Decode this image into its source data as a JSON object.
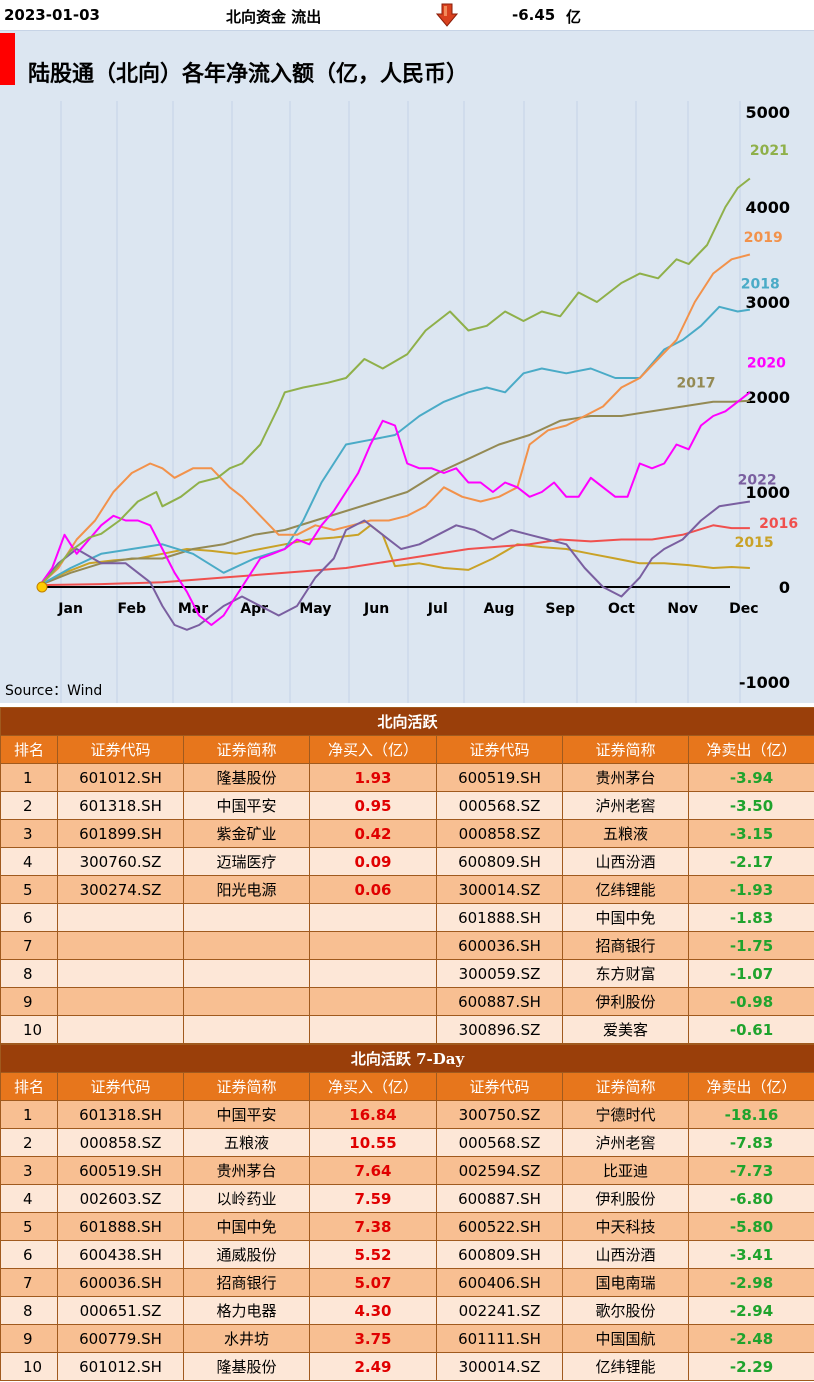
{
  "header": {
    "date": "2023-01-03",
    "label": "北向资金 流出",
    "value": "-6.45",
    "unit": "亿"
  },
  "colors": {
    "2021": "#8fb04a",
    "2019": "#f2924b",
    "2018": "#4aabc7",
    "2020": "#ff00ff",
    "2017": "#948a54",
    "2022": "#7a5fa0",
    "2016": "#f0504e",
    "2015": "#c9a227"
  },
  "chart_data": {
    "type": "line",
    "title": "陆股通（北向）各年净流入额（亿，人民币）",
    "source": "Source：Wind",
    "xlabel": "",
    "ylabel": "",
    "ylim": [
      -1000,
      5000
    ],
    "yticks": [
      5000,
      4000,
      3000,
      2000,
      1000,
      0,
      -1000
    ],
    "months": [
      "Jan",
      "Feb",
      "Mar",
      "Apr",
      "May",
      "Jun",
      "Jul",
      "Aug",
      "Sep",
      "Oct",
      "Nov",
      "Dec"
    ],
    "series": [
      {
        "name": "2021",
        "x": [
          0,
          0.2,
          0.5,
          0.8,
          1.0,
          1.3,
          1.6,
          1.9,
          2.0,
          2.3,
          2.6,
          2.9,
          3.1,
          3.3,
          3.6,
          3.9,
          4.0,
          4.3,
          4.7,
          5.0,
          5.3,
          5.6,
          6.0,
          6.3,
          6.7,
          7.0,
          7.3,
          7.6,
          7.9,
          8.2,
          8.5,
          8.8,
          9.1,
          9.5,
          9.8,
          10.1,
          10.4,
          10.6,
          10.9,
          11.2,
          11.4,
          11.6
        ],
        "y": [
          20,
          150,
          380,
          520,
          560,
          700,
          900,
          1000,
          850,
          950,
          1100,
          1150,
          1250,
          1300,
          1500,
          1900,
          2050,
          2100,
          2150,
          2200,
          2400,
          2300,
          2450,
          2700,
          2900,
          2700,
          2750,
          2900,
          2800,
          2900,
          2850,
          3100,
          3000,
          3200,
          3300,
          3250,
          3450,
          3400,
          3600,
          4000,
          4200,
          4300
        ]
      },
      {
        "name": "2019",
        "x": [
          0,
          0.3,
          0.6,
          0.9,
          1.2,
          1.5,
          1.8,
          2.0,
          2.2,
          2.5,
          2.8,
          3.1,
          3.3,
          3.6,
          3.9,
          4.2,
          4.5,
          4.8,
          5.1,
          5.4,
          5.7,
          6.0,
          6.3,
          6.6,
          6.9,
          7.2,
          7.5,
          7.8,
          8.0,
          8.3,
          8.6,
          8.9,
          9.2,
          9.5,
          9.8,
          10.1,
          10.4,
          10.7,
          11.0,
          11.3,
          11.6
        ],
        "y": [
          20,
          200,
          500,
          700,
          1000,
          1200,
          1300,
          1250,
          1150,
          1250,
          1250,
          1050,
          950,
          750,
          550,
          550,
          650,
          600,
          650,
          700,
          700,
          750,
          850,
          1050,
          950,
          900,
          950,
          1050,
          1500,
          1650,
          1700,
          1800,
          1900,
          2100,
          2200,
          2400,
          2600,
          3000,
          3300,
          3450,
          3500
        ]
      },
      {
        "name": "2018",
        "x": [
          0,
          0.5,
          1.0,
          1.5,
          2.0,
          2.5,
          3.0,
          3.5,
          4.0,
          4.3,
          4.6,
          5.0,
          5.4,
          5.8,
          6.2,
          6.6,
          7.0,
          7.3,
          7.6,
          7.9,
          8.2,
          8.6,
          9.0,
          9.4,
          9.8,
          10.2,
          10.5,
          10.8,
          11.1,
          11.4,
          11.6
        ],
        "y": [
          20,
          200,
          350,
          400,
          450,
          350,
          150,
          300,
          400,
          700,
          1100,
          1500,
          1550,
          1600,
          1800,
          1950,
          2050,
          2100,
          2050,
          2250,
          2300,
          2250,
          2300,
          2200,
          2200,
          2500,
          2600,
          2750,
          2950,
          2900,
          2920
        ]
      },
      {
        "name": "2020",
        "x": [
          0,
          0.2,
          0.4,
          0.6,
          0.8,
          1.0,
          1.2,
          1.4,
          1.6,
          1.8,
          2.0,
          2.2,
          2.4,
          2.6,
          2.8,
          3.0,
          3.2,
          3.4,
          3.6,
          3.8,
          4.0,
          4.2,
          4.4,
          4.6,
          4.8,
          5.0,
          5.2,
          5.4,
          5.6,
          5.8,
          6.0,
          6.2,
          6.4,
          6.6,
          6.8,
          7.0,
          7.2,
          7.4,
          7.6,
          7.8,
          8.0,
          8.2,
          8.4,
          8.6,
          8.8,
          9.0,
          9.2,
          9.4,
          9.6,
          9.8,
          10.0,
          10.2,
          10.4,
          10.6,
          10.8,
          11.0,
          11.2,
          11.4,
          11.6
        ],
        "y": [
          20,
          200,
          550,
          350,
          500,
          650,
          750,
          700,
          700,
          650,
          400,
          150,
          -50,
          -300,
          -400,
          -300,
          -100,
          100,
          300,
          350,
          400,
          500,
          450,
          650,
          800,
          1000,
          1200,
          1500,
          1750,
          1700,
          1300,
          1250,
          1250,
          1200,
          1250,
          1100,
          1100,
          1000,
          1100,
          1050,
          950,
          1000,
          1100,
          950,
          950,
          1150,
          1050,
          950,
          950,
          1300,
          1250,
          1300,
          1500,
          1450,
          1700,
          1800,
          1850,
          1950,
          2050
        ]
      },
      {
        "name": "2017",
        "x": [
          0,
          0.5,
          1.0,
          1.5,
          2.0,
          2.5,
          3.0,
          3.5,
          4.0,
          4.5,
          5.0,
          5.5,
          6.0,
          6.5,
          7.0,
          7.5,
          8.0,
          8.5,
          9.0,
          9.5,
          10.0,
          10.5,
          11.0,
          11.3,
          11.6
        ],
        "y": [
          20,
          150,
          250,
          300,
          300,
          400,
          450,
          550,
          600,
          700,
          800,
          900,
          1000,
          1200,
          1350,
          1500,
          1600,
          1750,
          1800,
          1800,
          1850,
          1900,
          1950,
          1950,
          1960
        ]
      },
      {
        "name": "2022",
        "x": [
          0,
          0.3,
          0.6,
          1.0,
          1.4,
          1.8,
          2.0,
          2.2,
          2.4,
          2.6,
          2.8,
          3.0,
          3.3,
          3.6,
          3.9,
          4.2,
          4.5,
          4.8,
          5.0,
          5.3,
          5.6,
          5.9,
          6.2,
          6.5,
          6.8,
          7.1,
          7.4,
          7.7,
          8.0,
          8.3,
          8.6,
          8.9,
          9.2,
          9.5,
          9.8,
          10.0,
          10.2,
          10.5,
          10.8,
          11.1,
          11.4,
          11.6
        ],
        "y": [
          20,
          250,
          400,
          250,
          250,
          50,
          -200,
          -400,
          -450,
          -400,
          -300,
          -200,
          -100,
          -200,
          -300,
          -200,
          100,
          300,
          600,
          700,
          550,
          400,
          450,
          550,
          650,
          600,
          500,
          600,
          550,
          500,
          450,
          200,
          0,
          -100,
          100,
          300,
          400,
          500,
          700,
          850,
          880,
          900
        ]
      },
      {
        "name": "2016",
        "x": [
          0,
          1.0,
          2.0,
          3.0,
          4.0,
          5.0,
          6.0,
          7.0,
          8.0,
          8.5,
          9.0,
          9.5,
          10.0,
          10.5,
          11.0,
          11.3,
          11.6
        ],
        "y": [
          20,
          30,
          50,
          100,
          150,
          200,
          300,
          400,
          450,
          500,
          480,
          500,
          500,
          550,
          650,
          620,
          620
        ]
      },
      {
        "name": "2015",
        "x": [
          0,
          0.4,
          0.8,
          1.2,
          1.6,
          2.0,
          2.4,
          2.8,
          3.2,
          3.6,
          4.0,
          4.4,
          4.8,
          5.2,
          5.4,
          5.6,
          5.8,
          6.2,
          6.6,
          7.0,
          7.4,
          7.8,
          8.2,
          8.6,
          9.0,
          9.4,
          9.8,
          10.2,
          10.6,
          11.0,
          11.3,
          11.6
        ],
        "y": [
          20,
          150,
          250,
          280,
          300,
          350,
          400,
          380,
          350,
          400,
          450,
          500,
          520,
          550,
          650,
          550,
          220,
          250,
          200,
          180,
          300,
          450,
          420,
          400,
          350,
          300,
          250,
          250,
          230,
          200,
          210,
          200
        ]
      }
    ]
  },
  "table1": {
    "title": "北向活跃",
    "headers": [
      "排名",
      "证券代码",
      "证券简称",
      "净买入（亿）",
      "证券代码",
      "证券简称",
      "净卖出（亿）"
    ],
    "rows": [
      {
        "rank": "1",
        "buy_code": "601012.SH",
        "buy_name": "隆基股份",
        "buy_val": "1.93",
        "sell_code": "600519.SH",
        "sell_name": "贵州茅台",
        "sell_val": "-3.94"
      },
      {
        "rank": "2",
        "buy_code": "601318.SH",
        "buy_name": "中国平安",
        "buy_val": "0.95",
        "sell_code": "000568.SZ",
        "sell_name": "泸州老窖",
        "sell_val": "-3.50"
      },
      {
        "rank": "3",
        "buy_code": "601899.SH",
        "buy_name": "紫金矿业",
        "buy_val": "0.42",
        "sell_code": "000858.SZ",
        "sell_name": "五粮液",
        "sell_val": "-3.15"
      },
      {
        "rank": "4",
        "buy_code": "300760.SZ",
        "buy_name": "迈瑞医疗",
        "buy_val": "0.09",
        "sell_code": "600809.SH",
        "sell_name": "山西汾酒",
        "sell_val": "-2.17"
      },
      {
        "rank": "5",
        "buy_code": "300274.SZ",
        "buy_name": "阳光电源",
        "buy_val": "0.06",
        "sell_code": "300014.SZ",
        "sell_name": "亿纬锂能",
        "sell_val": "-1.93"
      },
      {
        "rank": "6",
        "buy_code": "",
        "buy_name": "",
        "buy_val": "",
        "sell_code": "601888.SH",
        "sell_name": "中国中免",
        "sell_val": "-1.83"
      },
      {
        "rank": "7",
        "buy_code": "",
        "buy_name": "",
        "buy_val": "",
        "sell_code": "600036.SH",
        "sell_name": "招商银行",
        "sell_val": "-1.75"
      },
      {
        "rank": "8",
        "buy_code": "",
        "buy_name": "",
        "buy_val": "",
        "sell_code": "300059.SZ",
        "sell_name": "东方财富",
        "sell_val": "-1.07"
      },
      {
        "rank": "9",
        "buy_code": "",
        "buy_name": "",
        "buy_val": "",
        "sell_code": "600887.SH",
        "sell_name": "伊利股份",
        "sell_val": "-0.98"
      },
      {
        "rank": "10",
        "buy_code": "",
        "buy_name": "",
        "buy_val": "",
        "sell_code": "300896.SZ",
        "sell_name": "爱美客",
        "sell_val": "-0.61"
      }
    ]
  },
  "table2": {
    "title": "北向活跃 7-Day",
    "headers": [
      "排名",
      "证券代码",
      "证券简称",
      "净买入（亿）",
      "证券代码",
      "证券简称",
      "净卖出（亿）"
    ],
    "rows": [
      {
        "rank": "1",
        "buy_code": "601318.SH",
        "buy_name": "中国平安",
        "buy_val": "16.84",
        "sell_code": "300750.SZ",
        "sell_name": "宁德时代",
        "sell_val": "-18.16"
      },
      {
        "rank": "2",
        "buy_code": "000858.SZ",
        "buy_name": "五粮液",
        "buy_val": "10.55",
        "sell_code": "000568.SZ",
        "sell_name": "泸州老窖",
        "sell_val": "-7.83"
      },
      {
        "rank": "3",
        "buy_code": "600519.SH",
        "buy_name": "贵州茅台",
        "buy_val": "7.64",
        "sell_code": "002594.SZ",
        "sell_name": "比亚迪",
        "sell_val": "-7.73"
      },
      {
        "rank": "4",
        "buy_code": "002603.SZ",
        "buy_name": "以岭药业",
        "buy_val": "7.59",
        "sell_code": "600887.SH",
        "sell_name": "伊利股份",
        "sell_val": "-6.80"
      },
      {
        "rank": "5",
        "buy_code": "601888.SH",
        "buy_name": "中国中免",
        "buy_val": "7.38",
        "sell_code": "600522.SH",
        "sell_name": "中天科技",
        "sell_val": "-5.80"
      },
      {
        "rank": "6",
        "buy_code": "600438.SH",
        "buy_name": "通威股份",
        "buy_val": "5.52",
        "sell_code": "600809.SH",
        "sell_name": "山西汾酒",
        "sell_val": "-3.41"
      },
      {
        "rank": "7",
        "buy_code": "600036.SH",
        "buy_name": "招商银行",
        "buy_val": "5.07",
        "sell_code": "600406.SH",
        "sell_name": "国电南瑞",
        "sell_val": "-2.98"
      },
      {
        "rank": "8",
        "buy_code": "000651.SZ",
        "buy_name": "格力电器",
        "buy_val": "4.30",
        "sell_code": "002241.SZ",
        "sell_name": "歌尔股份",
        "sell_val": "-2.94"
      },
      {
        "rank": "9",
        "buy_code": "600779.SH",
        "buy_name": "水井坊",
        "buy_val": "3.75",
        "sell_code": "601111.SH",
        "sell_name": "中国国航",
        "sell_val": "-2.48"
      },
      {
        "rank": "10",
        "buy_code": "601012.SH",
        "buy_name": "隆基股份",
        "buy_val": "2.49",
        "sell_code": "300014.SZ",
        "sell_name": "亿纬锂能",
        "sell_val": "-2.29"
      }
    ]
  }
}
